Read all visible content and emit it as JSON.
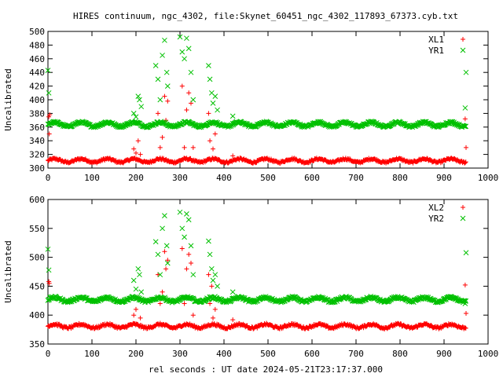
{
  "title": "HIRES continuum, ngc_4302, file:Skynet_60451_ngc_4302_117893_67373.cyb.txt",
  "xlabel": "rel seconds : UT date 2024-05-21T23:17:37.000",
  "colors": {
    "red": "#ff0000",
    "green": "#00c000"
  },
  "chart_data": [
    {
      "type": "scatter",
      "ylabel": "Uncalibrated",
      "xlim": [
        0,
        1000
      ],
      "ylim": [
        300,
        500
      ],
      "xticks": [
        0,
        100,
        200,
        300,
        400,
        500,
        600,
        700,
        800,
        900,
        1000
      ],
      "yticks": [
        300,
        320,
        340,
        360,
        380,
        400,
        420,
        440,
        460,
        480,
        500
      ],
      "legend_position": "top-right",
      "series": [
        {
          "name": "XL1",
          "marker": "plus",
          "color": "#ff0000",
          "baseline": {
            "x_start": 0,
            "x_end": 950,
            "level": 311,
            "wave_amplitude": 2.5,
            "wave_period": 60,
            "noise": 1.5
          },
          "outliers": [
            {
              "x": 2,
              "y": 375
            },
            {
              "x": 3,
              "y": 350
            },
            {
              "x": 4,
              "y": 378
            },
            {
              "x": 195,
              "y": 328
            },
            {
              "x": 200,
              "y": 322
            },
            {
              "x": 205,
              "y": 340
            },
            {
              "x": 210,
              "y": 320
            },
            {
              "x": 250,
              "y": 380
            },
            {
              "x": 255,
              "y": 330
            },
            {
              "x": 260,
              "y": 345
            },
            {
              "x": 265,
              "y": 405
            },
            {
              "x": 268,
              "y": 370
            },
            {
              "x": 272,
              "y": 398
            },
            {
              "x": 305,
              "y": 420
            },
            {
              "x": 310,
              "y": 330
            },
            {
              "x": 315,
              "y": 385
            },
            {
              "x": 320,
              "y": 410
            },
            {
              "x": 325,
              "y": 395
            },
            {
              "x": 330,
              "y": 330
            },
            {
              "x": 365,
              "y": 380
            },
            {
              "x": 368,
              "y": 340
            },
            {
              "x": 372,
              "y": 365
            },
            {
              "x": 375,
              "y": 328
            },
            {
              "x": 380,
              "y": 350
            },
            {
              "x": 420,
              "y": 318
            },
            {
              "x": 948,
              "y": 372
            },
            {
              "x": 950,
              "y": 330
            }
          ]
        },
        {
          "name": "YR1",
          "marker": "cross",
          "color": "#00c000",
          "baseline": {
            "x_start": 0,
            "x_end": 950,
            "level": 364,
            "wave_amplitude": 3,
            "wave_period": 60,
            "noise": 1.5
          },
          "outliers": [
            {
              "x": 0,
              "y": 443
            },
            {
              "x": 2,
              "y": 410
            },
            {
              "x": 195,
              "y": 380
            },
            {
              "x": 200,
              "y": 375
            },
            {
              "x": 205,
              "y": 405
            },
            {
              "x": 208,
              "y": 400
            },
            {
              "x": 212,
              "y": 390
            },
            {
              "x": 245,
              "y": 450
            },
            {
              "x": 250,
              "y": 430
            },
            {
              "x": 255,
              "y": 400
            },
            {
              "x": 260,
              "y": 465
            },
            {
              "x": 265,
              "y": 487
            },
            {
              "x": 270,
              "y": 440
            },
            {
              "x": 272,
              "y": 420
            },
            {
              "x": 300,
              "y": 492
            },
            {
              "x": 305,
              "y": 470
            },
            {
              "x": 310,
              "y": 460
            },
            {
              "x": 315,
              "y": 490
            },
            {
              "x": 320,
              "y": 475
            },
            {
              "x": 325,
              "y": 440
            },
            {
              "x": 330,
              "y": 400
            },
            {
              "x": 365,
              "y": 450
            },
            {
              "x": 368,
              "y": 430
            },
            {
              "x": 372,
              "y": 410
            },
            {
              "x": 375,
              "y": 395
            },
            {
              "x": 380,
              "y": 405
            },
            {
              "x": 385,
              "y": 385
            },
            {
              "x": 420,
              "y": 376
            },
            {
              "x": 948,
              "y": 388
            },
            {
              "x": 950,
              "y": 440
            }
          ]
        }
      ]
    },
    {
      "type": "scatter",
      "ylabel": "Uncalibrated",
      "xlim": [
        0,
        1000
      ],
      "ylim": [
        350,
        600
      ],
      "xticks": [
        0,
        100,
        200,
        300,
        400,
        500,
        600,
        700,
        800,
        900,
        1000
      ],
      "yticks": [
        350,
        400,
        450,
        500,
        550,
        600
      ],
      "legend_position": "top-right",
      "series": [
        {
          "name": "XL2",
          "marker": "plus",
          "color": "#ff0000",
          "baseline": {
            "x_start": 0,
            "x_end": 950,
            "level": 381,
            "wave_amplitude": 3,
            "wave_period": 60,
            "noise": 2
          },
          "outliers": [
            {
              "x": 2,
              "y": 458
            },
            {
              "x": 3,
              "y": 455
            },
            {
              "x": 195,
              "y": 400
            },
            {
              "x": 200,
              "y": 410
            },
            {
              "x": 205,
              "y": 430
            },
            {
              "x": 210,
              "y": 395
            },
            {
              "x": 250,
              "y": 470
            },
            {
              "x": 255,
              "y": 420
            },
            {
              "x": 260,
              "y": 440
            },
            {
              "x": 265,
              "y": 510
            },
            {
              "x": 268,
              "y": 480
            },
            {
              "x": 272,
              "y": 495
            },
            {
              "x": 305,
              "y": 515
            },
            {
              "x": 310,
              "y": 420
            },
            {
              "x": 315,
              "y": 480
            },
            {
              "x": 320,
              "y": 505
            },
            {
              "x": 325,
              "y": 490
            },
            {
              "x": 330,
              "y": 400
            },
            {
              "x": 365,
              "y": 470
            },
            {
              "x": 368,
              "y": 420
            },
            {
              "x": 372,
              "y": 450
            },
            {
              "x": 375,
              "y": 395
            },
            {
              "x": 380,
              "y": 410
            },
            {
              "x": 420,
              "y": 392
            },
            {
              "x": 948,
              "y": 452
            },
            {
              "x": 950,
              "y": 403
            }
          ]
        },
        {
          "name": "YR2",
          "marker": "cross",
          "color": "#00c000",
          "baseline": {
            "x_start": 0,
            "x_end": 950,
            "level": 427,
            "wave_amplitude": 3.5,
            "wave_period": 60,
            "noise": 2
          },
          "outliers": [
            {
              "x": 0,
              "y": 514
            },
            {
              "x": 2,
              "y": 478
            },
            {
              "x": 195,
              "y": 460
            },
            {
              "x": 200,
              "y": 445
            },
            {
              "x": 205,
              "y": 480
            },
            {
              "x": 208,
              "y": 470
            },
            {
              "x": 212,
              "y": 440
            },
            {
              "x": 245,
              "y": 527
            },
            {
              "x": 250,
              "y": 505
            },
            {
              "x": 255,
              "y": 470
            },
            {
              "x": 260,
              "y": 550
            },
            {
              "x": 265,
              "y": 572
            },
            {
              "x": 270,
              "y": 520
            },
            {
              "x": 272,
              "y": 490
            },
            {
              "x": 300,
              "y": 578
            },
            {
              "x": 305,
              "y": 550
            },
            {
              "x": 310,
              "y": 535
            },
            {
              "x": 315,
              "y": 575
            },
            {
              "x": 320,
              "y": 565
            },
            {
              "x": 325,
              "y": 520
            },
            {
              "x": 330,
              "y": 470
            },
            {
              "x": 365,
              "y": 528
            },
            {
              "x": 368,
              "y": 505
            },
            {
              "x": 372,
              "y": 480
            },
            {
              "x": 375,
              "y": 460
            },
            {
              "x": 380,
              "y": 470
            },
            {
              "x": 385,
              "y": 450
            },
            {
              "x": 420,
              "y": 440
            },
            {
              "x": 948,
              "y": 420
            },
            {
              "x": 950,
              "y": 508
            }
          ]
        }
      ]
    }
  ]
}
